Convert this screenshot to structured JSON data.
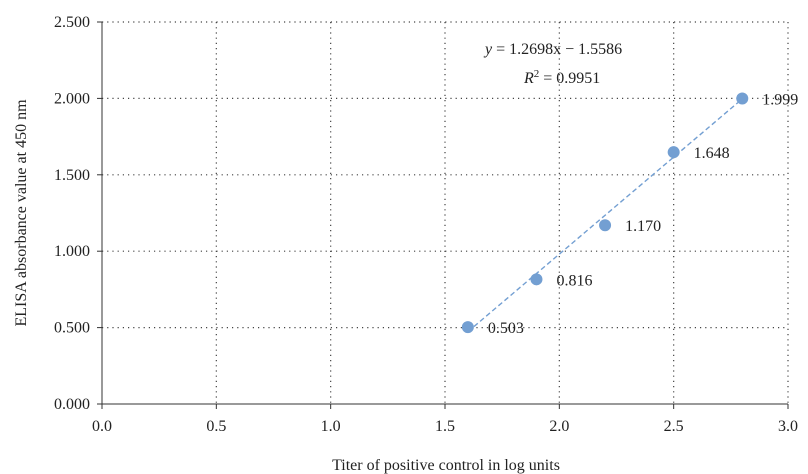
{
  "chart_data": {
    "type": "scatter",
    "title": "",
    "xlabel": "Titer of positive control in log units",
    "ylabel": "ELISA absorbance value at 450 nm",
    "xlim": [
      0.0,
      3.0
    ],
    "ylim": [
      0.0,
      2.5
    ],
    "x_ticks": [
      "0.0",
      "0.5",
      "1.0",
      "1.5",
      "2.0",
      "2.5",
      "3.0"
    ],
    "y_ticks": [
      "0.000",
      "0.500",
      "1.000",
      "1.500",
      "2.000",
      "2.500"
    ],
    "grid": "dotted",
    "series": [
      {
        "x": [
          1.6,
          1.9,
          2.2,
          2.5,
          2.8
        ],
        "y": [
          0.503,
          0.816,
          1.17,
          1.648,
          1.999
        ],
        "labels": [
          "0.503",
          "0.816",
          "1.170",
          "1.648",
          "1.999"
        ],
        "color": "#739fd2"
      }
    ],
    "trendline": {
      "slope": 1.2698,
      "intercept": -1.5586,
      "color": "#739fd2",
      "style": "dashed",
      "equation_y": "y",
      "equation_rhs": " = 1.2698x − 1.5586",
      "r2_label": "R",
      "r2_sup": "2",
      "r2_value": " = 0.9951"
    }
  }
}
